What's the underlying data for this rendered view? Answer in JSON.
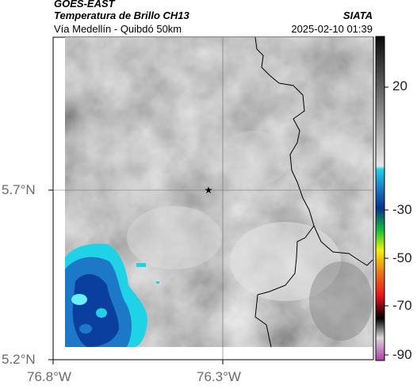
{
  "header": {
    "title": "GOES-EAST",
    "subtitle": "Temperatura de Brillo CH13",
    "route": "Vía Medellín - Quibdó 50km",
    "org": "SIATA",
    "datetime": "2025-02-10 01:39"
  },
  "axes": {
    "lat_labels": [
      "5.7°N",
      "5.2°N"
    ],
    "lon_labels": [
      "76.8°W",
      "76.3°W"
    ]
  },
  "colorbar": {
    "ticks": [
      "20",
      "-30",
      "-50",
      "-70",
      "-90"
    ],
    "colors": {
      "dark_blue": "#0a3fa0",
      "blue": "#1e78c8",
      "cyan": "#1fd2e6",
      "green": "#19c23c",
      "yellow": "#f2f20a",
      "red": "#e8141e",
      "black": "#000000",
      "magenta": "#b03ca8"
    }
  },
  "map": {
    "marker_icon": "star-icon",
    "background_gray": "#9b9b9b"
  }
}
